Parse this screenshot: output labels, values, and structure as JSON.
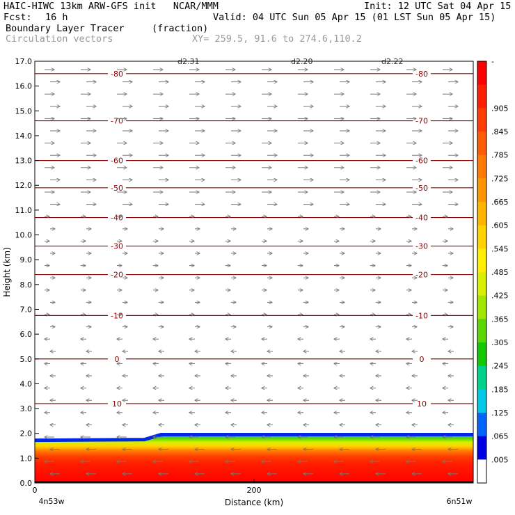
{
  "header": {
    "title_left": "HAIC-HIWC 13km ARW-GFS init   NCAR/MMM",
    "init": "Init: 12 UTC Sat 04 Apr 15",
    "fcst_label": "Fcst:",
    "fcst_value": "16 h",
    "valid": "Valid: 04 UTC Sun 05 Apr 15 (01 LST Sun 05 Apr 15)",
    "field_name": "Boundary Layer Tracer",
    "field_units": "(fraction)",
    "overlay_name": "Circulation vectors",
    "xy_text": "XY= 259.5, 91.6 to 274.6,110.2"
  },
  "chart_data": {
    "type": "heatmap",
    "xlabel": "Distance (km)",
    "ylabel": "Height (km)",
    "xlim": [
      0,
      400
    ],
    "ylim": [
      0,
      17
    ],
    "x_tick_labels": [
      {
        "value": 0,
        "label": "0"
      },
      {
        "value": 200,
        "label": "200"
      }
    ],
    "x_endpoint_labels": [
      "4n53w",
      "6n51w"
    ],
    "y_ticks": [
      "0.0",
      "1.0",
      "2.0",
      "3.0",
      "4.0",
      "5.0",
      "6.0",
      "7.0",
      "8.0",
      "9.0",
      "10.0",
      "11.0",
      "12.0",
      "13.0",
      "14.0",
      "15.0",
      "16.0",
      "17.0"
    ],
    "tracer_top_km": [
      {
        "x": 0,
        "top": 1.72
      },
      {
        "x": 100,
        "top": 1.75
      },
      {
        "x": 115,
        "top": 1.95
      },
      {
        "x": 400,
        "top": 1.95
      }
    ],
    "temperature_contours": [
      {
        "value": -80,
        "height": 16.5,
        "label": "-80"
      },
      {
        "value": -70,
        "height": 14.6,
        "label": "-70"
      },
      {
        "value": -60,
        "height": 13.0,
        "label": "-60"
      },
      {
        "value": -50,
        "height": 11.9,
        "label": "-50"
      },
      {
        "value": -40,
        "height": 10.7,
        "label": "-40"
      },
      {
        "value": -30,
        "height": 9.55,
        "label": "-30"
      },
      {
        "value": -20,
        "height": 8.4,
        "label": "-20"
      },
      {
        "value": -10,
        "height": 6.75,
        "label": "-10"
      },
      {
        "value": 0,
        "height": 5.0,
        "label": "0"
      },
      {
        "value": 10,
        "height": 3.2,
        "label": "10"
      }
    ],
    "top_labels": [
      "d2.31",
      "d2.20",
      "d2.22"
    ],
    "colorbar": {
      "labels": [
        "-",
        ".905",
        ".845",
        ".785",
        ".725",
        ".665",
        ".605",
        ".545",
        ".485",
        ".425",
        ".365",
        ".305",
        ".245",
        ".185",
        ".125",
        ".065",
        ".005"
      ],
      "colors": [
        "#ff0000",
        "#ff1e00",
        "#ff3c00",
        "#ff5a00",
        "#ff7800",
        "#ff9600",
        "#ffb400",
        "#ffd200",
        "#ffee00",
        "#d8f000",
        "#a0e600",
        "#5ad700",
        "#14c800",
        "#00d28c",
        "#00c8e6",
        "#0064ff",
        "#0000e6",
        "#ffffff"
      ]
    }
  }
}
